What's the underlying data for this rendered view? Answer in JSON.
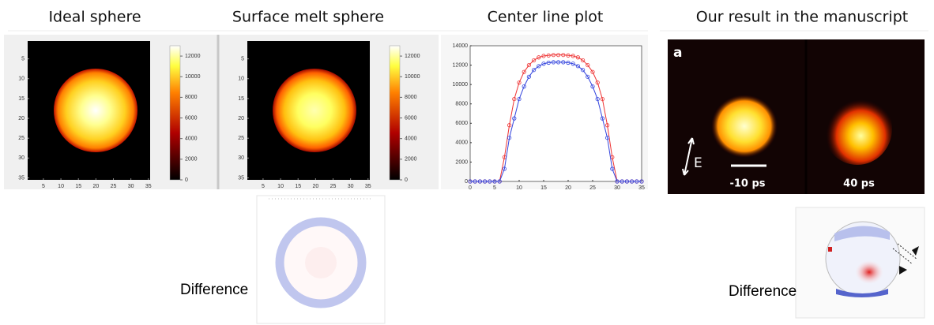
{
  "chart_data": [
    {
      "type": "heatmap",
      "title": "Ideal sphere",
      "xlim": [
        0.5,
        35.5
      ],
      "ylim": [
        0.5,
        35.5
      ],
      "xticks": [
        5,
        10,
        15,
        20,
        25,
        30,
        35
      ],
      "yticks": [
        5,
        10,
        15,
        20,
        25,
        30,
        35
      ],
      "colorbar_lim": [
        0,
        13000
      ],
      "colorbar_ticks": [
        0,
        2000,
        4000,
        6000,
        8000,
        10000,
        12000
      ]
    },
    {
      "type": "heatmap",
      "title": "Surface melt sphere",
      "xlim": [
        0.5,
        35.5
      ],
      "ylim": [
        0.5,
        35.5
      ],
      "xticks": [
        5,
        10,
        15,
        20,
        25,
        30,
        35
      ],
      "yticks": [
        5,
        10,
        15,
        20,
        25,
        30,
        35
      ],
      "colorbar_lim": [
        0,
        13000
      ],
      "colorbar_ticks": [
        0,
        2000,
        4000,
        6000,
        8000,
        10000,
        12000
      ]
    },
    {
      "type": "line",
      "title": "Center line plot",
      "xlim": [
        0,
        35
      ],
      "ylim": [
        0,
        14000
      ],
      "xticks": [
        0,
        5,
        10,
        15,
        20,
        25,
        30,
        35
      ],
      "yticks": [
        0,
        2000,
        4000,
        6000,
        8000,
        10000,
        12000,
        14000
      ],
      "x": [
        0,
        1,
        2,
        3,
        4,
        5,
        6,
        7,
        8,
        9,
        10,
        11,
        12,
        13,
        14,
        15,
        16,
        17,
        18,
        19,
        20,
        21,
        22,
        23,
        24,
        25,
        26,
        27,
        28,
        29,
        30,
        31,
        32,
        33,
        34,
        35
      ],
      "series": [
        {
          "color": "#ee3333",
          "values": [
            0,
            0,
            0,
            0,
            0,
            0,
            0,
            2500,
            5800,
            8500,
            10200,
            11300,
            12000,
            12500,
            12800,
            12950,
            13000,
            13050,
            13050,
            13050,
            13000,
            12950,
            12800,
            12500,
            12000,
            11300,
            10200,
            8500,
            5800,
            2500,
            0,
            0,
            0,
            0,
            0,
            0
          ]
        },
        {
          "color": "#3344dd",
          "values": [
            0,
            0,
            0,
            0,
            0,
            0,
            0,
            1300,
            4500,
            6500,
            8500,
            9800,
            10800,
            11500,
            11900,
            12150,
            12250,
            12300,
            12300,
            12300,
            12250,
            12150,
            11900,
            11500,
            10800,
            9800,
            8500,
            6500,
            4500,
            1300,
            0,
            0,
            0,
            0,
            0,
            0
          ]
        }
      ]
    }
  ],
  "manuscript": {
    "title": "Our result in the manuscript",
    "panel_label": "a",
    "field_label": "E",
    "times": [
      "-10 ps",
      "40 ps"
    ]
  },
  "difference_labels": [
    "Difference",
    "Difference"
  ]
}
